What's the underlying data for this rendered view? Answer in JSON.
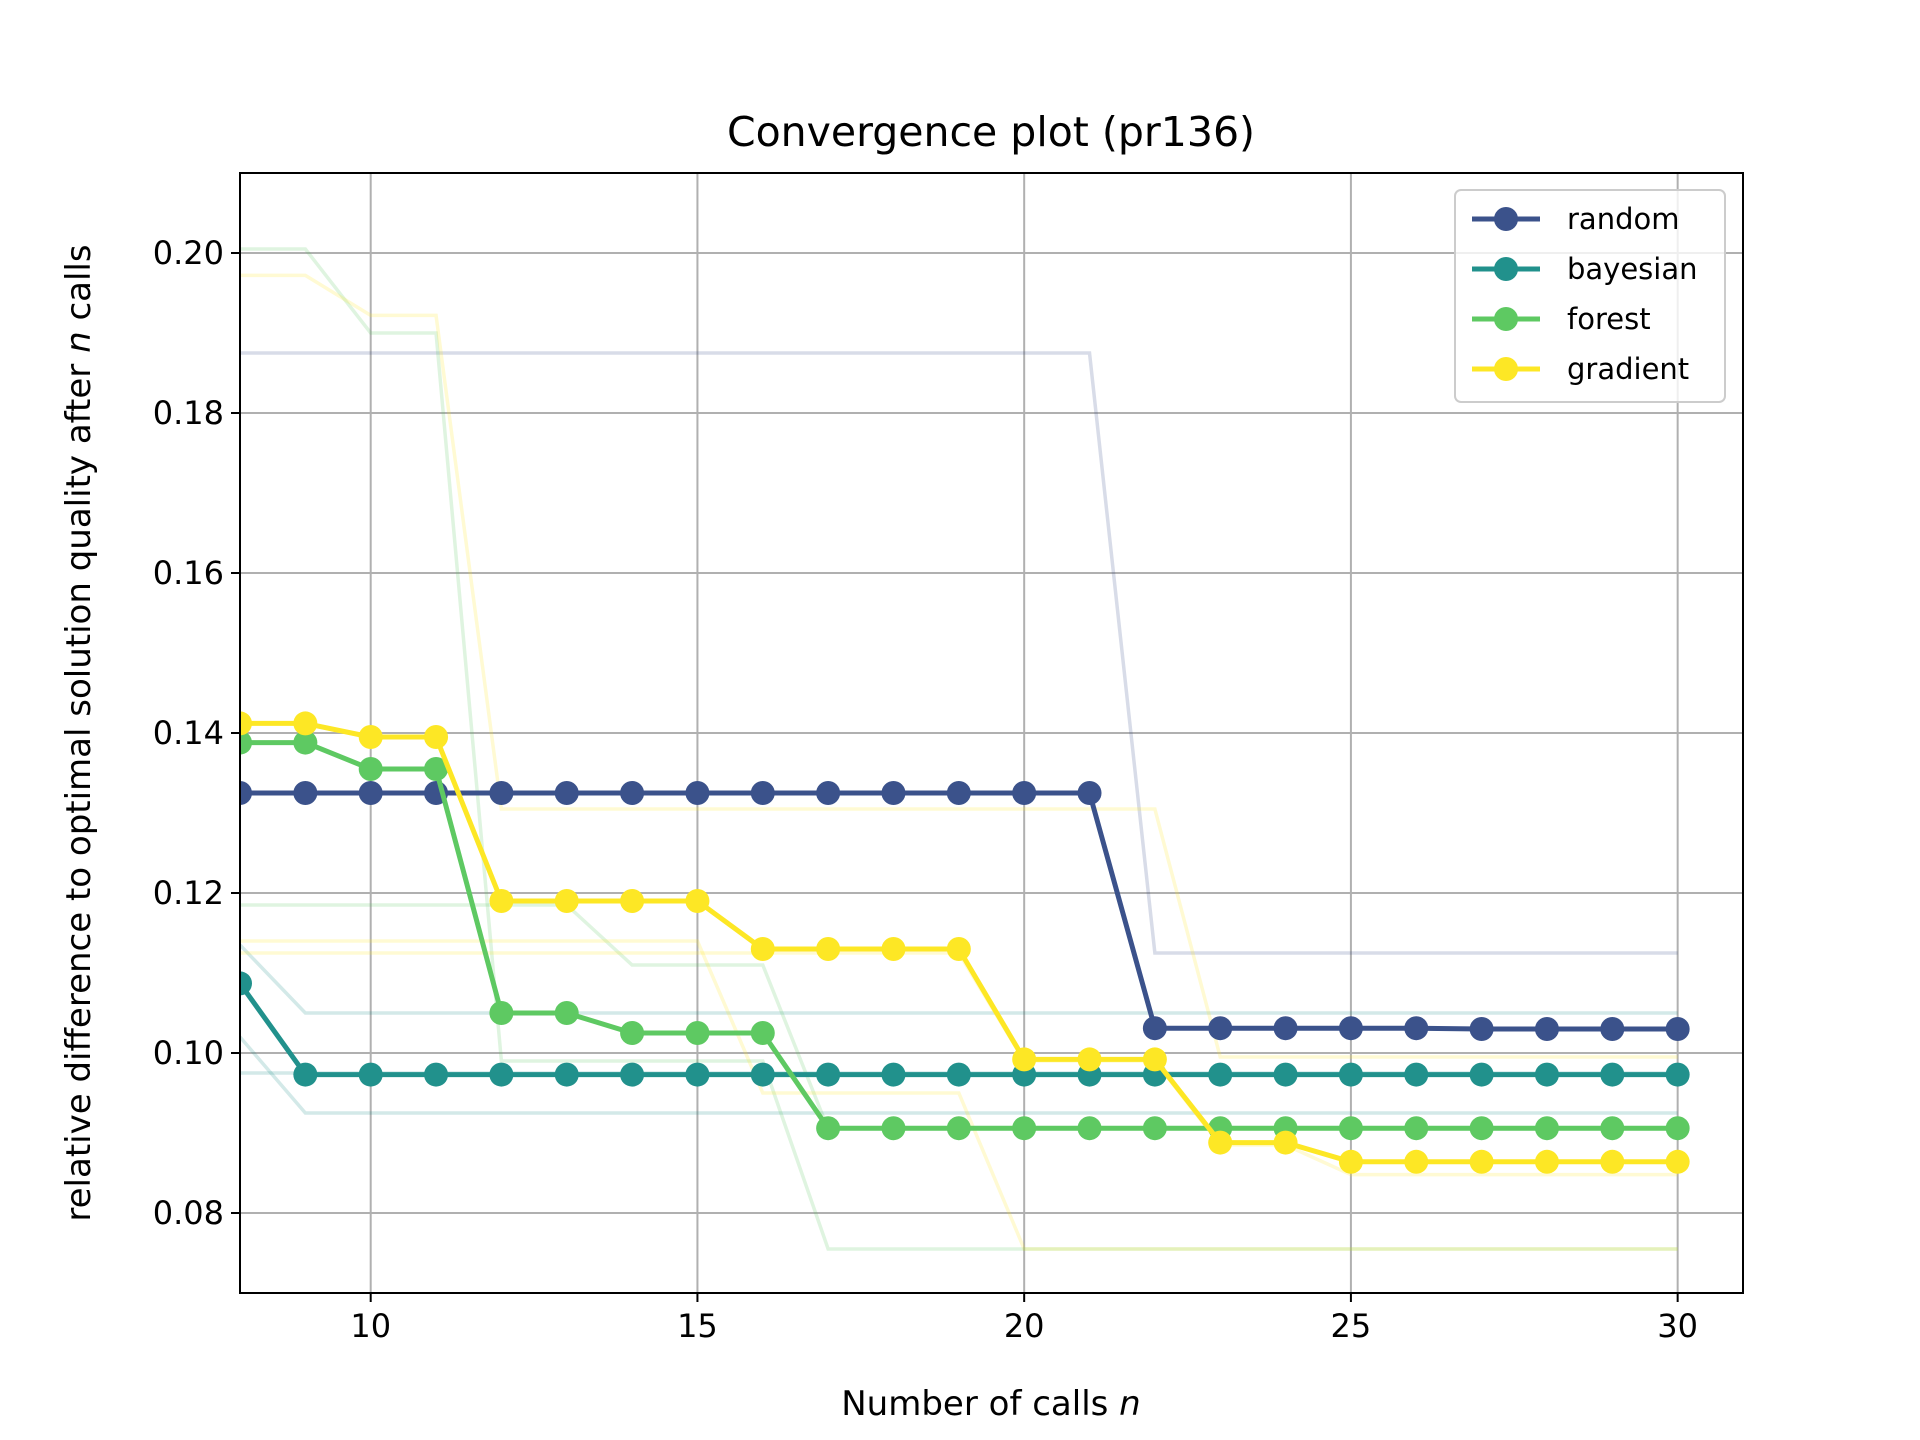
{
  "chart_data": {
    "type": "line",
    "title": "Convergence plot (pr136)",
    "xlabel_main": "Number of calls ",
    "xlabel_italic": "n",
    "ylabel_main": "relative difference to optimal solution quality after ",
    "ylabel_italic": "n",
    "ylabel_tail": " calls",
    "xlim": [
      8,
      31
    ],
    "ylim": [
      0.07,
      0.21
    ],
    "xticks": [
      10,
      15,
      20,
      25,
      30
    ],
    "xtick_labels": [
      "10",
      "15",
      "20",
      "25",
      "30"
    ],
    "yticks": [
      0.08,
      0.1,
      0.12,
      0.14,
      0.16,
      0.18,
      0.2
    ],
    "ytick_labels": [
      "0.08",
      "0.10",
      "0.12",
      "0.14",
      "0.16",
      "0.18",
      "0.20"
    ],
    "grid": true,
    "legend_position": "top-right",
    "x": [
      8,
      9,
      10,
      11,
      12,
      13,
      14,
      15,
      16,
      17,
      18,
      19,
      20,
      21,
      22,
      23,
      24,
      25,
      26,
      27,
      28,
      29,
      30
    ],
    "series": [
      {
        "name": "random",
        "color": "#3b528b",
        "values": [
          0.1325,
          0.1325,
          0.1325,
          0.1325,
          0.1325,
          0.1325,
          0.1325,
          0.1325,
          0.1325,
          0.1325,
          0.1325,
          0.1325,
          0.1325,
          0.1325,
          0.1031,
          0.1031,
          0.1031,
          0.1031,
          0.1031,
          0.103,
          0.103,
          0.103,
          0.103
        ],
        "runs": [
          [
            0.1875,
            0.1875,
            0.1875,
            0.1875,
            0.1875,
            0.1875,
            0.1875,
            0.1875,
            0.1875,
            0.1875,
            0.1875,
            0.1875,
            0.1875,
            0.1875,
            0.1125,
            0.1125,
            0.1125,
            0.1125,
            0.1125,
            0.1125,
            0.1125,
            0.1125,
            0.1125
          ]
        ]
      },
      {
        "name": "bayesian",
        "color": "#21918c",
        "values": [
          0.1087,
          0.0973,
          0.0973,
          0.0973,
          0.0973,
          0.0973,
          0.0973,
          0.0973,
          0.0973,
          0.0973,
          0.0973,
          0.0973,
          0.0973,
          0.0973,
          0.0973,
          0.0973,
          0.0973,
          0.0973,
          0.0973,
          0.0973,
          0.0973,
          0.0973,
          0.0973
        ],
        "runs": [
          [
            0.1135,
            0.105,
            0.105,
            0.105,
            0.105,
            0.105,
            0.105,
            0.105,
            0.105,
            0.105,
            0.105,
            0.105,
            0.105,
            0.105,
            0.105,
            0.105,
            0.105,
            0.105,
            0.105,
            0.105,
            0.105,
            0.105,
            0.105
          ],
          [
            0.102,
            0.0925,
            0.0925,
            0.0925,
            0.0925,
            0.0925,
            0.0925,
            0.0925,
            0.0925,
            0.0925,
            0.0925,
            0.0925,
            0.0925,
            0.0925,
            0.0925,
            0.0925,
            0.0925,
            0.0925,
            0.0925,
            0.0925,
            0.0925,
            0.0925,
            0.0925
          ],
          [
            0.0975,
            0.0975,
            0.0975,
            0.0975,
            0.0975,
            0.0975,
            0.0975,
            0.0975,
            0.0975,
            0.0975,
            0.0975,
            0.0975,
            0.0975,
            0.0975,
            0.0975,
            0.0975,
            0.0975,
            0.0975,
            0.0975,
            0.0975,
            0.0975,
            0.0975,
            0.0975
          ]
        ]
      },
      {
        "name": "forest",
        "color": "#5ec962",
        "values": [
          0.1388,
          0.1388,
          0.1355,
          0.1355,
          0.105,
          0.105,
          0.1025,
          0.1025,
          0.1025,
          0.0906,
          0.0906,
          0.0906,
          0.0906,
          0.0906,
          0.0906,
          0.0906,
          0.0906,
          0.0906,
          0.0906,
          0.0906,
          0.0906,
          0.0906,
          0.0906
        ],
        "runs": [
          [
            0.2005,
            0.2005,
            0.19,
            0.19,
            0.099,
            0.099,
            0.099,
            0.099,
            0.099,
            0.0755,
            0.0755,
            0.0755,
            0.0755,
            0.0755,
            0.0755,
            0.0755,
            0.0755,
            0.0755,
            0.0755,
            0.0755,
            0.0755,
            0.0755,
            0.0755
          ],
          [
            0.1185,
            0.1185,
            0.1185,
            0.1185,
            0.1185,
            0.1185,
            0.111,
            0.111,
            0.111,
            0.0905,
            0.0905,
            0.0905,
            0.0905,
            0.0905,
            0.0905,
            0.0905,
            0.0905,
            0.0905,
            0.0905,
            0.0905,
            0.0905,
            0.0905,
            0.0905
          ]
        ]
      },
      {
        "name": "gradient",
        "color": "#fde725",
        "values": [
          0.1412,
          0.1412,
          0.1395,
          0.1395,
          0.119,
          0.119,
          0.119,
          0.119,
          0.113,
          0.113,
          0.113,
          0.113,
          0.0992,
          0.0992,
          0.0992,
          0.0888,
          0.0888,
          0.0864,
          0.0864,
          0.0864,
          0.0864,
          0.0864,
          0.0864
        ],
        "runs": [
          [
            0.1972,
            0.1972,
            0.1922,
            0.1922,
            0.1305,
            0.1305,
            0.1305,
            0.1305,
            0.1305,
            0.1305,
            0.1305,
            0.1305,
            0.1305,
            0.1305,
            0.1305,
            0.0995,
            0.0995,
            0.0995,
            0.0995,
            0.0995,
            0.0995,
            0.0995,
            0.0995
          ],
          [
            0.114,
            0.114,
            0.114,
            0.114,
            0.114,
            0.114,
            0.114,
            0.114,
            0.095,
            0.095,
            0.095,
            0.095,
            0.0755,
            0.0755,
            0.0755,
            0.0755,
            0.0755,
            0.0755,
            0.0755,
            0.0755,
            0.0755,
            0.0755,
            0.0755
          ],
          [
            0.1125,
            0.1125,
            0.1125,
            0.1125,
            0.1125,
            0.1125,
            0.1125,
            0.1125,
            0.1125,
            0.1125,
            0.1125,
            0.1125,
            0.099,
            0.099,
            0.099,
            0.0885,
            0.0885,
            0.0848,
            0.0848,
            0.0848,
            0.0848,
            0.0848,
            0.0848
          ]
        ]
      }
    ]
  }
}
